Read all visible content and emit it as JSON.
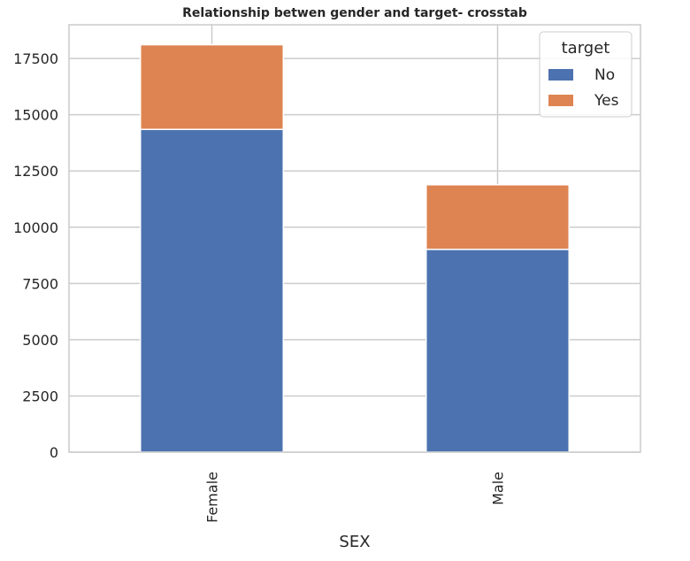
{
  "chart_data": {
    "type": "bar",
    "stacked": true,
    "title": "Relationship betwen gender and target- crosstab",
    "xlabel": "SEX",
    "ylabel": "",
    "categories": [
      "Female",
      "Male"
    ],
    "series": [
      {
        "name": "No",
        "values": [
          14349,
          9015
        ],
        "color": "#4c72b0"
      },
      {
        "name": "Yes",
        "values": [
          3763,
          2873
        ],
        "color": "#dd8452"
      }
    ],
    "ylim": [
      0,
      19000
    ],
    "yticks": [
      0,
      2500,
      5000,
      7500,
      10000,
      12500,
      15000,
      17500
    ],
    "grid": true,
    "legend": {
      "title": "target",
      "placement": "top-right"
    }
  }
}
